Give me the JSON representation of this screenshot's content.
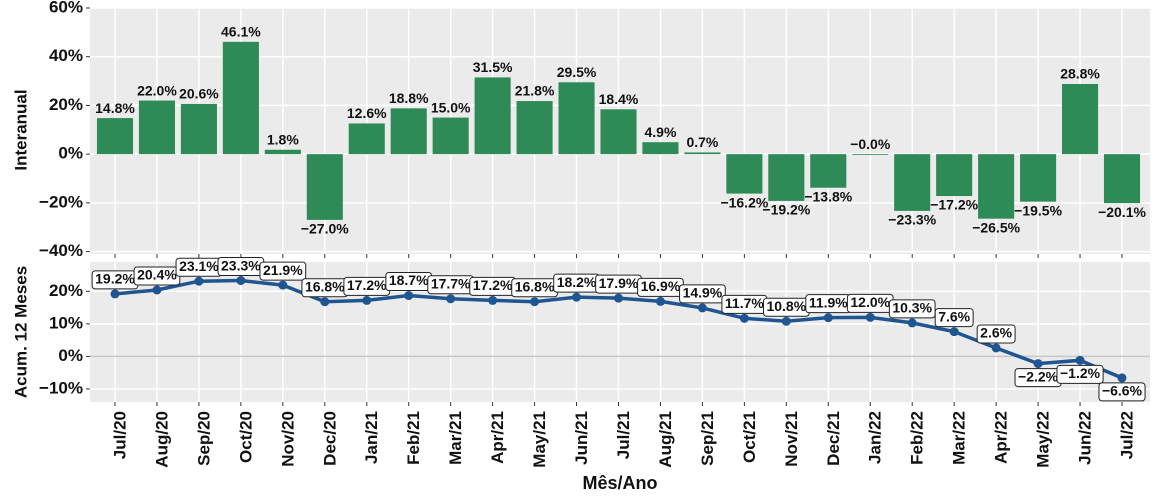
{
  "chart_data": [
    {
      "type": "bar",
      "y_label": "Interanual",
      "values": [
        14.8,
        22.0,
        20.6,
        46.1,
        1.8,
        -27.0,
        12.6,
        18.8,
        15.0,
        31.5,
        21.8,
        29.5,
        18.4,
        4.9,
        0.7,
        -16.2,
        -19.2,
        -13.8,
        0,
        -23.3,
        -17.2,
        -26.5,
        -19.5,
        28.8,
        -20.1
      ],
      "value_labels": [
        "14.8%",
        "22.0%",
        "20.6%",
        "46.1%",
        "1.8%",
        "−27.0%",
        "12.6%",
        "18.8%",
        "15.0%",
        "31.5%",
        "21.8%",
        "29.5%",
        "18.4%",
        "4.9%",
        "0.7%",
        "−16.2%",
        "−19.2%",
        "−13.8%",
        "−0.0%",
        "−23.3%",
        "−17.2%",
        "−26.5%",
        "−19.5%",
        "28.8%",
        "−20.1%"
      ],
      "color": "#2e8b57",
      "ylim": [
        -41,
        60
      ],
      "yticks": [
        {
          "value": -40,
          "label": "−40%"
        },
        {
          "value": -20,
          "label": "−20%"
        },
        {
          "value": 0,
          "label": "0%"
        },
        {
          "value": 20,
          "label": "20%"
        },
        {
          "value": 40,
          "label": "40%"
        },
        {
          "value": 60,
          "label": "60%"
        }
      ],
      "grid": true
    },
    {
      "type": "line",
      "y_label": "Acum. 12 Meses",
      "x_label": "Mês/Ano",
      "categories": [
        "Jul/20",
        "Aug/20",
        "Sep/20",
        "Oct/20",
        "Nov/20",
        "Dec/20",
        "Jan/21",
        "Feb/21",
        "Mar/21",
        "Apr/21",
        "May/21",
        "Jun/21",
        "Jul/21",
        "Aug/21",
        "Sep/21",
        "Oct/21",
        "Nov/21",
        "Dec/21",
        "Jan/22",
        "Feb/22",
        "Mar/22",
        "Apr/22",
        "May/22",
        "Jun/22",
        "Jul/22"
      ],
      "values": [
        19.2,
        20.4,
        23.1,
        23.3,
        21.9,
        16.8,
        17.2,
        18.7,
        17.7,
        17.2,
        16.8,
        18.2,
        17.9,
        16.9,
        14.9,
        11.7,
        10.8,
        11.9,
        12.0,
        10.3,
        7.6,
        2.6,
        -2.2,
        -1.2,
        -6.6
      ],
      "value_labels": [
        "19.2%",
        "20.4%",
        "23.1%",
        "23.3%",
        "21.9%",
        "16.8%",
        "17.2%",
        "18.7%",
        "17.7%",
        "17.2%",
        "16.8%",
        "18.2%",
        "17.9%",
        "16.9%",
        "14.9%",
        "11.7%",
        "10.8%",
        "11.9%",
        "12.0%",
        "10.3%",
        "7.6%",
        "2.6%",
        "−2.2%",
        "−1.2%",
        "−6.6%"
      ],
      "color": "#1f5591",
      "ylim": [
        -14,
        29
      ],
      "yticks": [
        {
          "value": -10,
          "label": "−10%"
        },
        {
          "value": 0,
          "label": "0%"
        },
        {
          "value": 10,
          "label": "10%"
        },
        {
          "value": 20,
          "label": "20%"
        }
      ],
      "grid": true
    }
  ]
}
